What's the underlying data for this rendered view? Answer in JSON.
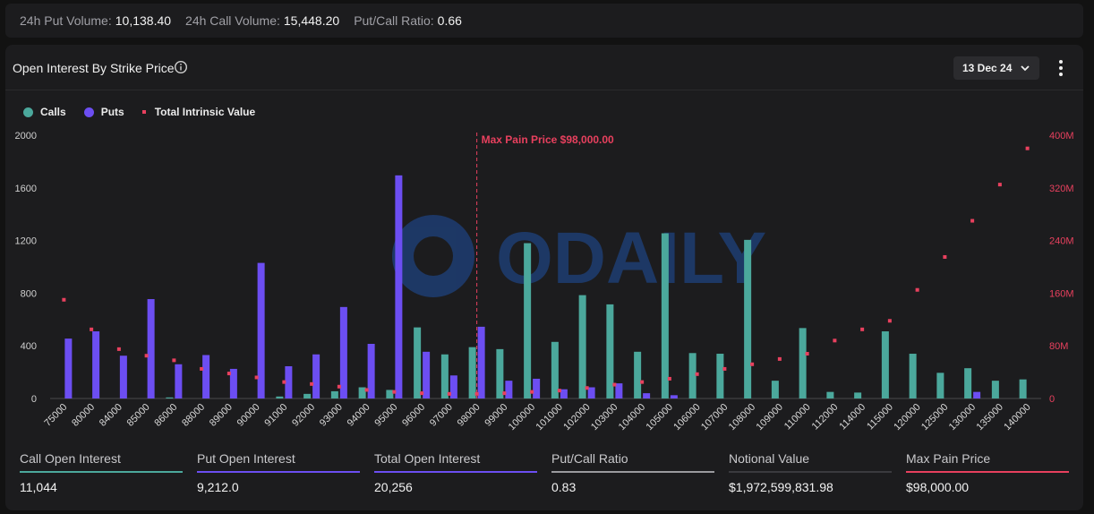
{
  "topbar": {
    "put_volume_label": "24h Put Volume:",
    "put_volume_value": "10,138.40",
    "call_volume_label": "24h Call Volume:",
    "call_volume_value": "15,448.20",
    "ratio_label": "Put/Call Ratio:",
    "ratio_value": "0.66"
  },
  "panel": {
    "title": "Open Interest By Strike Price",
    "info_icon": "info-icon",
    "date_value": "13 Dec 24",
    "menu_icon": "more-vertical-icon"
  },
  "legend": {
    "calls": "Calls",
    "puts": "Puts",
    "intrinsic": "Total Intrinsic Value"
  },
  "colors": {
    "calls": "#4ba89c",
    "puts": "#6c4ef2",
    "intrinsic": "#e8405e",
    "watermark": "#1f4fa0"
  },
  "watermark": "ODAILY",
  "chart_data": {
    "type": "bar",
    "categories": [
      "75000",
      "80000",
      "84000",
      "85000",
      "86000",
      "88000",
      "89000",
      "90000",
      "91000",
      "92000",
      "93000",
      "94000",
      "95000",
      "96000",
      "97000",
      "98000",
      "99000",
      "100000",
      "101000",
      "102000",
      "103000",
      "104000",
      "105000",
      "106000",
      "107000",
      "108000",
      "109000",
      "110000",
      "112000",
      "114000",
      "115000",
      "120000",
      "125000",
      "130000",
      "135000",
      "140000"
    ],
    "series": [
      {
        "name": "Calls",
        "axis": "left",
        "values": [
          0,
          0,
          0,
          0,
          8,
          0,
          0,
          0,
          15,
          35,
          55,
          85,
          65,
          540,
          335,
          390,
          375,
          1180,
          430,
          785,
          715,
          355,
          1255,
          345,
          340,
          1205,
          135,
          535,
          50,
          45,
          510,
          340,
          195,
          230,
          135,
          145
        ]
      },
      {
        "name": "Puts",
        "axis": "left",
        "values": [
          455,
          510,
          325,
          755,
          260,
          330,
          225,
          1030,
          245,
          335,
          695,
          415,
          1695,
          355,
          175,
          545,
          135,
          150,
          70,
          85,
          115,
          40,
          25,
          0,
          0,
          0,
          0,
          0,
          0,
          0,
          0,
          0,
          0,
          50,
          0,
          0
        ]
      },
      {
        "name": "Total Intrinsic Value",
        "axis": "right",
        "type": "scatter",
        "values": [
          150,
          105,
          75,
          65,
          58,
          45,
          38,
          32,
          25,
          22,
          18,
          13,
          10,
          8,
          7,
          7,
          8,
          10,
          12,
          16,
          21,
          25,
          30,
          37,
          45,
          52,
          60,
          68,
          88,
          105,
          118,
          165,
          215,
          270,
          325,
          380
        ]
      }
    ],
    "ylim": [
      0,
      2000
    ],
    "yticks": [
      "0",
      "400",
      "800",
      "1200",
      "1600",
      "2000"
    ],
    "y2lim": [
      0,
      400
    ],
    "y2ticks": [
      "0",
      "80M",
      "160M",
      "240M",
      "320M",
      "400M"
    ],
    "grid": false,
    "legend": "top-left",
    "annotation": {
      "at_category": "98000",
      "text": "Max Pain Price $98,000.00"
    }
  },
  "metrics": [
    {
      "label": "Call Open Interest",
      "value": "11,044",
      "color": "#4ba89c"
    },
    {
      "label": "Put Open Interest",
      "value": "9,212.0",
      "color": "#6c4ef2"
    },
    {
      "label": "Total Open Interest",
      "value": "20,256",
      "color": "#6c4ef2"
    },
    {
      "label": "Put/Call Ratio",
      "value": "0.83",
      "color": "#9a9a9e"
    },
    {
      "label": "Notional Value",
      "value": "$1,972,599,831.98",
      "color": "#3a3a3e"
    },
    {
      "label": "Max Pain Price",
      "value": "$98,000.00",
      "color": "#e8405e"
    }
  ]
}
